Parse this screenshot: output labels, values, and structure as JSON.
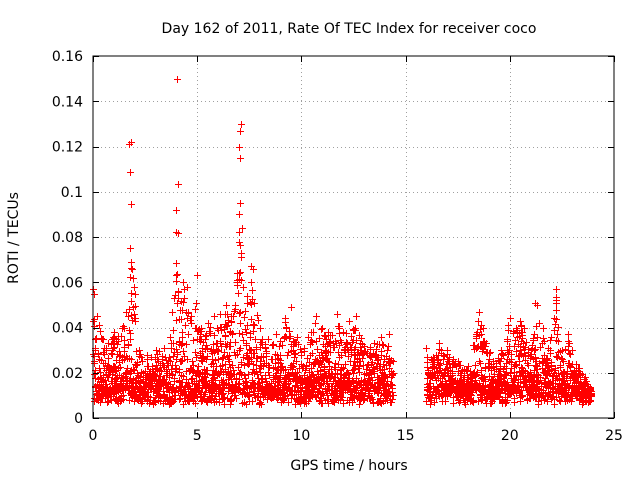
{
  "chart_data": {
    "type": "scatter",
    "title": "Day 162 of 2011, Rate Of TEC Index for receiver coco",
    "xlabel": "GPS time / hours",
    "ylabel": "ROTI / TECUs",
    "xlim": [
      0,
      25
    ],
    "ylim": [
      0,
      0.16
    ],
    "xticks": [
      0,
      5,
      10,
      15,
      20,
      25
    ],
    "xtick_labels": [
      "0",
      "5",
      "10",
      "15",
      "20",
      "25"
    ],
    "yticks": [
      0,
      0.02,
      0.04,
      0.06,
      0.08,
      0.1,
      0.12,
      0.14,
      0.16
    ],
    "ytick_labels": [
      "0",
      "0.02",
      "0.04",
      "0.06",
      "0.08",
      "0.1",
      "0.12",
      "0.14",
      "0.16"
    ],
    "grid": true,
    "marker": "+",
    "marker_color": "#ff0000",
    "gap_hours": [
      14.4,
      16.0
    ],
    "series": [
      {
        "name": "ROTI",
        "points": [
          [
            0.0,
            0.057
          ],
          [
            0.05,
            0.055
          ],
          [
            0.1,
            0.035
          ],
          [
            0.2,
            0.045
          ],
          [
            0.3,
            0.041
          ],
          [
            0.5,
            0.035
          ],
          [
            0.7,
            0.033
          ],
          [
            1.0,
            0.038
          ],
          [
            1.4,
            0.04
          ],
          [
            1.6,
            0.047
          ],
          [
            1.7,
            0.045
          ],
          [
            1.8,
            0.069
          ],
          [
            1.85,
            0.066
          ],
          [
            1.9,
            0.062
          ],
          [
            1.95,
            0.058
          ],
          [
            2.0,
            0.055
          ],
          [
            1.75,
            0.121
          ],
          [
            1.8,
            0.122
          ],
          [
            2.2,
            0.03
          ],
          [
            2.6,
            0.028
          ],
          [
            3.0,
            0.03
          ],
          [
            3.4,
            0.031
          ],
          [
            3.7,
            0.036
          ],
          [
            3.8,
            0.047
          ],
          [
            3.9,
            0.053
          ],
          [
            4.0,
            0.082
          ],
          [
            4.0,
            0.092
          ],
          [
            4.05,
            0.15
          ],
          [
            4.1,
            0.056
          ],
          [
            4.3,
            0.06
          ],
          [
            4.5,
            0.058
          ],
          [
            4.7,
            0.045
          ],
          [
            4.9,
            0.048
          ],
          [
            5.0,
            0.063
          ],
          [
            5.2,
            0.04
          ],
          [
            5.5,
            0.042
          ],
          [
            5.8,
            0.045
          ],
          [
            6.1,
            0.046
          ],
          [
            6.4,
            0.05
          ],
          [
            6.6,
            0.045
          ],
          [
            6.8,
            0.05
          ],
          [
            7.0,
            0.078
          ],
          [
            7.0,
            0.09
          ],
          [
            7.05,
            0.095
          ],
          [
            7.05,
            0.115
          ],
          [
            7.0,
            0.12
          ],
          [
            7.05,
            0.127
          ],
          [
            7.1,
            0.13
          ],
          [
            7.2,
            0.058
          ],
          [
            7.4,
            0.054
          ],
          [
            7.6,
            0.067
          ],
          [
            7.7,
            0.066
          ],
          [
            8.0,
            0.04
          ],
          [
            8.4,
            0.035
          ],
          [
            8.8,
            0.037
          ],
          [
            9.2,
            0.044
          ],
          [
            9.5,
            0.049
          ],
          [
            9.8,
            0.036
          ],
          [
            10.3,
            0.036
          ],
          [
            10.7,
            0.045
          ],
          [
            11.0,
            0.04
          ],
          [
            11.3,
            0.038
          ],
          [
            11.7,
            0.046
          ],
          [
            12.0,
            0.038
          ],
          [
            12.3,
            0.043
          ],
          [
            12.6,
            0.045
          ],
          [
            13.0,
            0.032
          ],
          [
            13.5,
            0.033
          ],
          [
            13.8,
            0.036
          ],
          [
            14.2,
            0.037
          ],
          [
            14.4,
            0.025
          ],
          [
            16.0,
            0.031
          ],
          [
            16.3,
            0.027
          ],
          [
            16.6,
            0.033
          ],
          [
            17.0,
            0.03
          ],
          [
            17.5,
            0.025
          ],
          [
            18.0,
            0.023
          ],
          [
            18.5,
            0.047
          ],
          [
            18.6,
            0.041
          ],
          [
            18.7,
            0.04
          ],
          [
            19.2,
            0.025
          ],
          [
            19.6,
            0.03
          ],
          [
            19.9,
            0.041
          ],
          [
            20.0,
            0.044
          ],
          [
            20.3,
            0.04
          ],
          [
            20.5,
            0.043
          ],
          [
            20.7,
            0.04
          ],
          [
            21.0,
            0.03
          ],
          [
            21.2,
            0.051
          ],
          [
            21.3,
            0.05
          ],
          [
            21.6,
            0.04
          ],
          [
            22.0,
            0.036
          ],
          [
            22.2,
            0.057
          ],
          [
            22.2,
            0.051
          ],
          [
            22.5,
            0.03
          ],
          [
            22.8,
            0.037
          ],
          [
            23.0,
            0.03
          ],
          [
            23.3,
            0.022
          ],
          [
            23.6,
            0.018
          ],
          [
            23.9,
            0.012
          ]
        ]
      }
    ]
  }
}
